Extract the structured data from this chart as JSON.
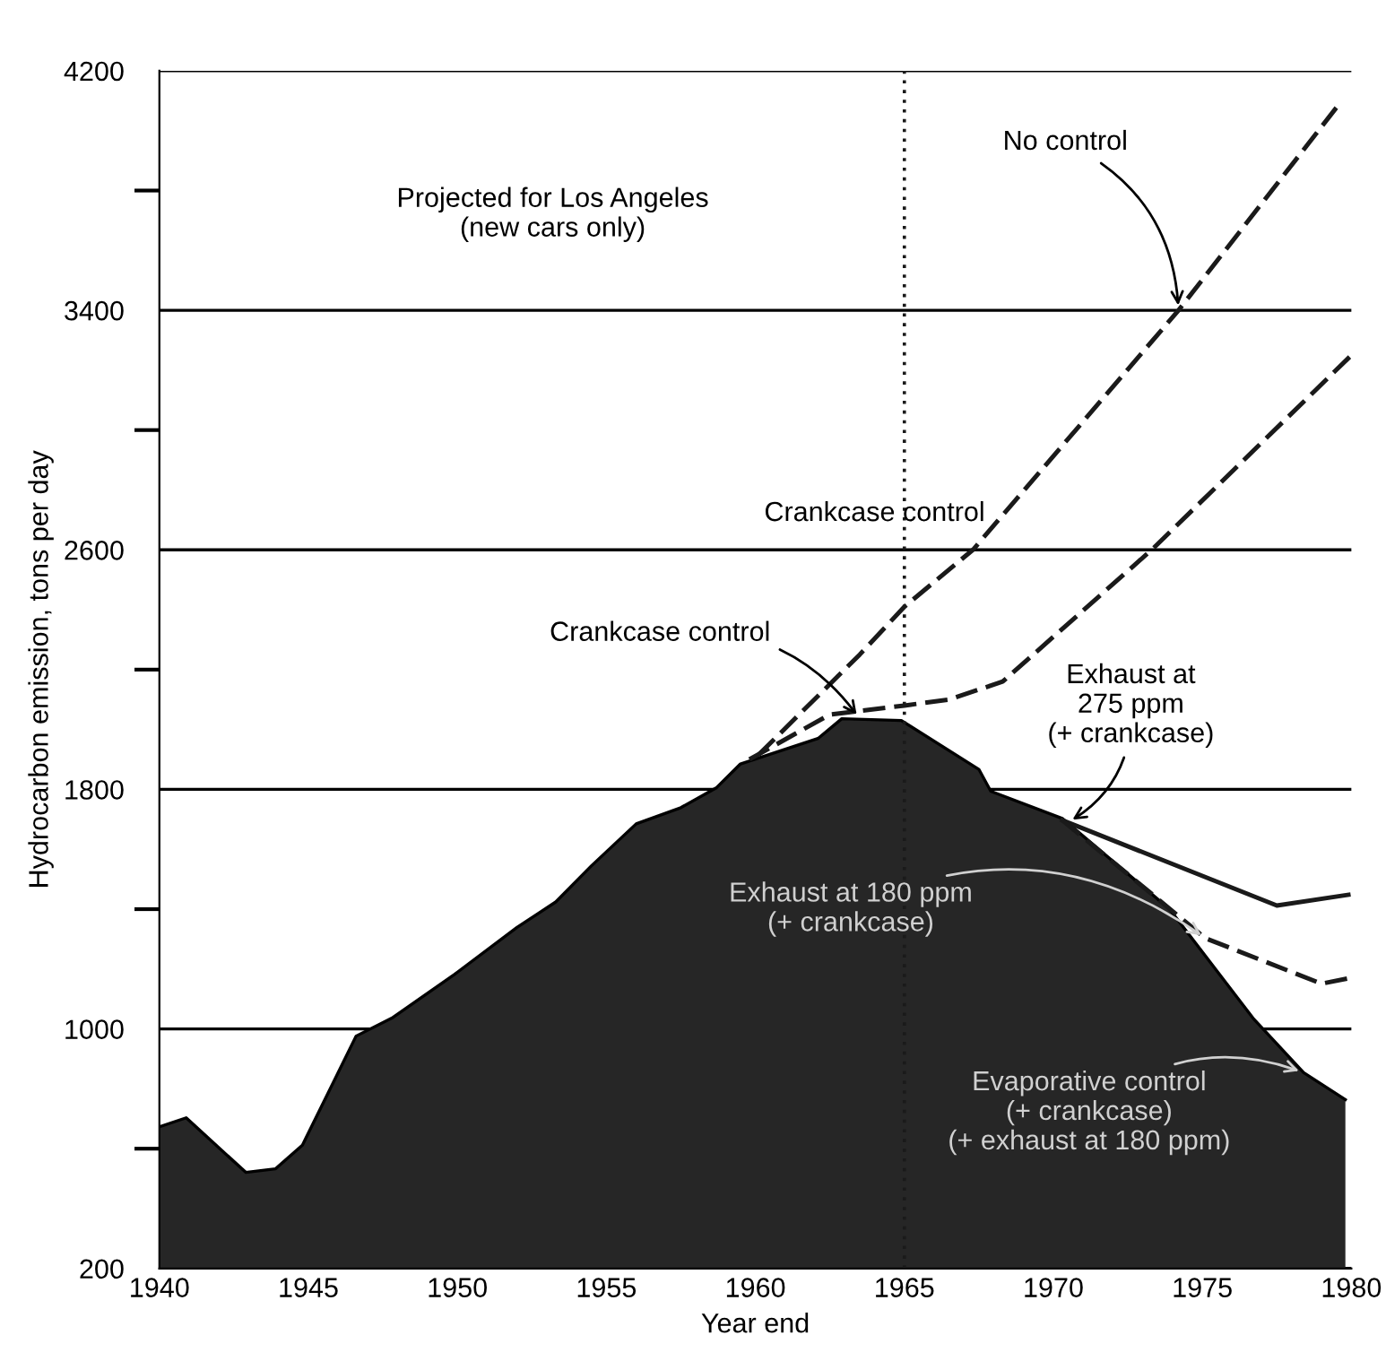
{
  "chart_data": {
    "type": "line",
    "xlabel": "Year end",
    "ylabel": "Hydrocarbon emission, tons per day",
    "xlim": [
      1940,
      1980
    ],
    "xticks": [
      1940,
      1945,
      1950,
      1955,
      1960,
      1965,
      1970,
      1975,
      1980
    ],
    "ylim": [
      200,
      4200
    ],
    "yticks": [
      200,
      {
        "value": 600,
        "label": null
      },
      1000,
      {
        "value": 1400,
        "label": null
      },
      1800,
      {
        "value": 2200,
        "label": null
      },
      2600,
      {
        "value": 3000,
        "label": null
      },
      3400,
      {
        "value": 3800,
        "label": null
      },
      4200
    ],
    "grid": "y",
    "series": [
      {
        "type": "area",
        "color": "#262626",
        "x": [
          1940.0,
          1940.9,
          1942.9,
          1943.9,
          1944.8,
          1945.7,
          1946.6,
          1947.8,
          1949.9,
          1952.0,
          1953.3,
          1954.5,
          1956.0,
          1957.5,
          1958.7,
          1959.5,
          1962.1,
          1962.9,
          1964.9,
          1967.5,
          1967.9,
          1970.3,
          1973.9,
          1976.7,
          1978.4,
          1979.8
        ],
        "values": [
          673,
          703,
          521,
          533,
          612,
          794,
          976,
          1036,
          1182,
          1339,
          1424,
          1545,
          1685,
          1739,
          1806,
          1885,
          1970,
          2036,
          2030,
          1867,
          1794,
          1703,
          1400,
          1036,
          854,
          764
        ]
      },
      {
        "line_style": "dashed",
        "color": "#1a1a1a",
        "x": [
          1960.1,
          1963.5,
          1965,
          1967.3,
          1974.2,
          1979.6
        ],
        "values": [
          1915,
          2250,
          2410,
          2600,
          3400,
          4090
        ]
      },
      {
        "line_style": "dashed",
        "color": "#1a1a1a",
        "x": [
          1959.8,
          1962.5,
          1965,
          1966.5,
          1968.3,
          1973.3,
          1980
        ],
        "values": [
          1900,
          2050,
          2080,
          2100,
          2160,
          2600,
          3250
        ]
      },
      {
        "line_style": "solid",
        "color": "#1a1a1a",
        "x": [
          1970.3,
          1977.5,
          1979.9
        ],
        "values": [
          1697,
          1412,
          1448
        ]
      },
      {
        "line_style": "dashed",
        "color": "#1a1a1a",
        "x": [
          1970.3,
          1975.1,
          1979.0,
          1979.9
        ],
        "values": [
          1697,
          1303,
          1151,
          1169
        ]
      }
    ],
    "ref_lines": [
      {
        "axis": "x",
        "value": 1965,
        "color": "#1a1a1a",
        "line_style": "dotted"
      }
    ],
    "annotations": [
      "Projected for Los Angeles\n(new cars only)",
      {
        "text": "No control",
        "x": 1974.2,
        "y": 3400
      },
      "Crankcase control",
      {
        "text": "Crankcase control",
        "x": 1963.5,
        "y": 2036
      },
      {
        "text": "Exhaust at\n275 ppm\n(+ crankcase)",
        "x": 1970.5,
        "y": 1690
      },
      {
        "text": "Exhaust at 180 ppm\n(+ crankcase)",
        "x": 1975.1,
        "y": 1303
      },
      {
        "text": "Evaporative control\n(+ crankcase)\n(+ exhaust at 180 ppm)",
        "x": 1978.4,
        "y": 854
      }
    ]
  }
}
